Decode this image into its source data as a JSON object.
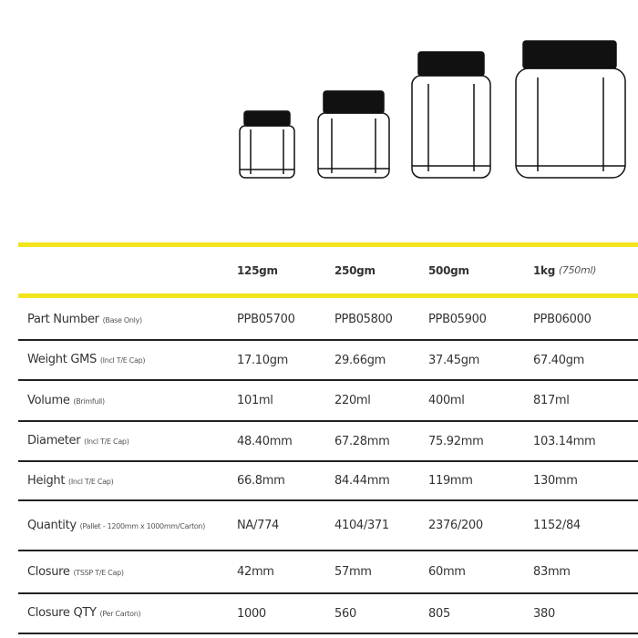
{
  "table": {
    "columns": [
      {
        "label": "125gm"
      },
      {
        "label": "250gm"
      },
      {
        "label": "500gm"
      },
      {
        "label": "1kg",
        "note": "(750ml)"
      }
    ],
    "rows": [
      {
        "label": "Part Number",
        "note": "(Base Only)",
        "values": [
          "PPB05700",
          "PPB05800",
          "PPB05900",
          "PPB06000"
        ]
      },
      {
        "label": "Weight GMS",
        "note": "(Incl T/E Cap)",
        "values": [
          "17.10gm",
          "29.66gm",
          "37.45gm",
          "67.40gm"
        ]
      },
      {
        "label": "Volume",
        "note": "(Brimfull)",
        "values": [
          "101ml",
          "220ml",
          "400ml",
          "817ml"
        ]
      },
      {
        "label": "Diameter",
        "note": "(Incl T/E Cap)",
        "values": [
          "48.40mm",
          "67.28mm",
          "75.92mm",
          "103.14mm"
        ]
      },
      {
        "label": "Height",
        "note": "(Incl T/E Cap)",
        "values": [
          "66.8mm",
          "84.44mm",
          "119mm",
          "130mm"
        ]
      },
      {
        "label": "Quantity",
        "note": "(Pallet - 1200mm x 1000mm/Carton)",
        "values": [
          "NA/774",
          "4104/371",
          "2376/200",
          "1152/84"
        ]
      },
      {
        "label": "Closure",
        "note": "(TSSP T/E Cap)",
        "values": [
          "42mm",
          "57mm",
          "60mm",
          "83mm"
        ]
      },
      {
        "label": "Closure QTY",
        "note": "(Per Carton)",
        "values": [
          "1000",
          "560",
          "805",
          "380"
        ]
      }
    ]
  }
}
